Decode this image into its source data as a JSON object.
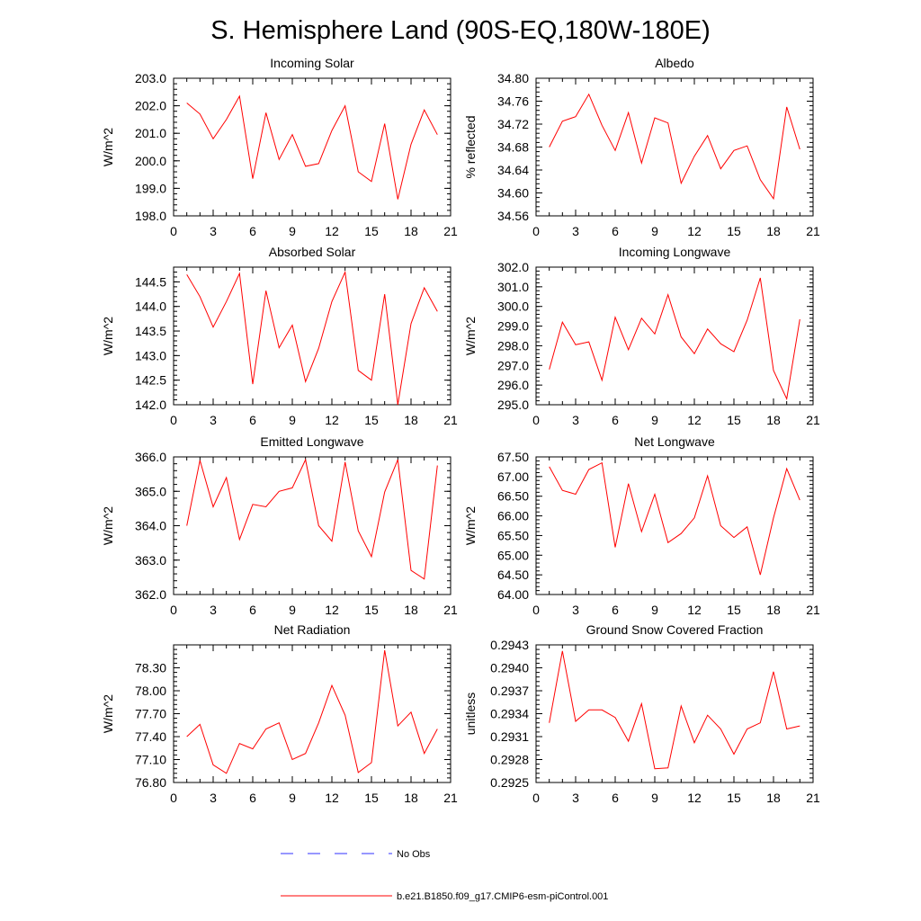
{
  "title": "S. Hemisphere Land (90S-EQ,180W-180E)",
  "colors": {
    "model": "#ff0000",
    "obs": "#3030ff",
    "frame": "#000000"
  },
  "legend": [
    {
      "label": "No Obs",
      "style": "dashed",
      "color": "#3030ff"
    },
    {
      "label": "b.e21.B1850.f09_g17.CMIP6-esm-piControl.001",
      "style": "solid",
      "color": "#ff0000"
    }
  ],
  "chart_data": [
    {
      "type": "line",
      "title": "Incoming Solar",
      "ylabel": "W/m^2",
      "xlim": [
        0,
        21
      ],
      "xticks": [
        "0",
        "3",
        "6",
        "9",
        "12",
        "15",
        "18",
        "21"
      ],
      "ylim": [
        198.0,
        203.0
      ],
      "yticks": [
        "198.0",
        "199.0",
        "200.0",
        "201.0",
        "202.0",
        "203.0"
      ],
      "series": [
        {
          "name": "b.e21.B1850.f09_g17.CMIP6-esm-piControl.001",
          "x": [
            1,
            2,
            3,
            4,
            5,
            6,
            7,
            8,
            9,
            10,
            11,
            12,
            13,
            14,
            15,
            16,
            17,
            18,
            19,
            20
          ],
          "values": [
            202.1,
            201.7,
            200.8,
            201.5,
            202.35,
            199.35,
            201.75,
            200.05,
            200.95,
            199.8,
            199.9,
            201.1,
            202.0,
            199.6,
            199.25,
            201.35,
            198.6,
            200.6,
            201.85,
            200.95
          ]
        }
      ]
    },
    {
      "type": "line",
      "title": "Albedo",
      "ylabel": "% reflected",
      "xlim": [
        0,
        21
      ],
      "xticks": [
        "0",
        "3",
        "6",
        "9",
        "12",
        "15",
        "18",
        "21"
      ],
      "ylim": [
        34.56,
        34.8
      ],
      "yticks": [
        "34.56",
        "34.60",
        "34.64",
        "34.68",
        "34.72",
        "34.76",
        "34.80"
      ],
      "series": [
        {
          "name": "b.e21.B1850.f09_g17.CMIP6-esm-piControl.001",
          "x": [
            1,
            2,
            3,
            4,
            5,
            6,
            7,
            8,
            9,
            10,
            11,
            12,
            13,
            14,
            15,
            16,
            17,
            18,
            19,
            20
          ],
          "values": [
            34.68,
            34.725,
            34.733,
            34.772,
            34.718,
            34.674,
            34.74,
            34.652,
            34.731,
            34.722,
            34.617,
            34.664,
            34.7,
            34.642,
            34.674,
            34.682,
            34.623,
            34.59,
            34.75,
            34.676
          ]
        }
      ]
    },
    {
      "type": "line",
      "title": "Absorbed Solar",
      "ylabel": "W/m^2",
      "xlim": [
        0,
        21
      ],
      "xticks": [
        "0",
        "3",
        "6",
        "9",
        "12",
        "15",
        "18",
        "21"
      ],
      "ylim": [
        142.0,
        144.8
      ],
      "yticks": [
        "142.0",
        "142.5",
        "143.0",
        "143.5",
        "144.0",
        "144.5"
      ],
      "series": [
        {
          "name": "b.e21.B1850.f09_g17.CMIP6-esm-piControl.001",
          "x": [
            1,
            2,
            3,
            4,
            5,
            6,
            7,
            8,
            9,
            10,
            11,
            12,
            13,
            14,
            15,
            16,
            17,
            18,
            19,
            20
          ],
          "values": [
            144.65,
            144.2,
            143.58,
            144.1,
            144.67,
            142.42,
            144.32,
            143.16,
            143.62,
            142.47,
            143.15,
            144.1,
            144.7,
            142.7,
            142.5,
            144.25,
            142.0,
            143.65,
            144.38,
            143.9
          ]
        }
      ]
    },
    {
      "type": "line",
      "title": "Incoming Longwave",
      "ylabel": "W/m^2",
      "xlim": [
        0,
        21
      ],
      "xticks": [
        "0",
        "3",
        "6",
        "9",
        "12",
        "15",
        "18",
        "21"
      ],
      "ylim": [
        295.0,
        302.0
      ],
      "yticks": [
        "295.0",
        "296.0",
        "297.0",
        "298.0",
        "299.0",
        "300.0",
        "301.0",
        "302.0"
      ],
      "series": [
        {
          "name": "b.e21.B1850.f09_g17.CMIP6-esm-piControl.001",
          "x": [
            1,
            2,
            3,
            4,
            5,
            6,
            7,
            8,
            9,
            10,
            11,
            12,
            13,
            14,
            15,
            16,
            17,
            18,
            19,
            20
          ],
          "values": [
            296.8,
            299.2,
            298.05,
            298.2,
            296.25,
            299.45,
            297.8,
            299.4,
            298.6,
            300.6,
            298.45,
            297.6,
            298.85,
            298.1,
            297.7,
            299.3,
            301.45,
            296.75,
            295.3,
            299.35
          ]
        }
      ]
    },
    {
      "type": "line",
      "title": "Emitted Longwave",
      "ylabel": "W/m^2",
      "xlim": [
        0,
        21
      ],
      "xticks": [
        "0",
        "3",
        "6",
        "9",
        "12",
        "15",
        "18",
        "21"
      ],
      "ylim": [
        362.0,
        366.0
      ],
      "yticks": [
        "362.0",
        "363.0",
        "364.0",
        "365.0",
        "366.0"
      ],
      "series": [
        {
          "name": "b.e21.B1850.f09_g17.CMIP6-esm-piControl.001",
          "x": [
            1,
            2,
            3,
            4,
            5,
            6,
            7,
            8,
            9,
            10,
            11,
            12,
            13,
            14,
            15,
            16,
            17,
            18,
            19,
            20
          ],
          "values": [
            364.0,
            365.9,
            364.55,
            365.4,
            363.6,
            364.62,
            364.55,
            365.0,
            365.1,
            365.92,
            364.0,
            363.55,
            365.85,
            363.85,
            363.1,
            364.98,
            365.92,
            362.7,
            362.45,
            365.75
          ]
        }
      ]
    },
    {
      "type": "line",
      "title": "Net Longwave",
      "ylabel": "W/m^2",
      "xlim": [
        0,
        21
      ],
      "xticks": [
        "0",
        "3",
        "6",
        "9",
        "12",
        "15",
        "18",
        "21"
      ],
      "ylim": [
        64.0,
        67.5
      ],
      "yticks": [
        "64.00",
        "64.50",
        "65.00",
        "65.50",
        "66.00",
        "66.50",
        "67.00",
        "67.50"
      ],
      "series": [
        {
          "name": "b.e21.B1850.f09_g17.CMIP6-esm-piControl.001",
          "x": [
            1,
            2,
            3,
            4,
            5,
            6,
            7,
            8,
            9,
            10,
            11,
            12,
            13,
            14,
            15,
            16,
            17,
            18,
            19,
            20
          ],
          "values": [
            67.25,
            66.65,
            66.55,
            67.18,
            67.35,
            65.2,
            66.82,
            65.6,
            66.55,
            65.32,
            65.55,
            65.95,
            67.02,
            65.75,
            65.45,
            65.72,
            64.5,
            65.95,
            67.2,
            66.4
          ]
        }
      ]
    },
    {
      "type": "line",
      "title": "Net Radiation",
      "ylabel": "W/m^2",
      "xlim": [
        0,
        21
      ],
      "xticks": [
        "0",
        "3",
        "6",
        "9",
        "12",
        "15",
        "18",
        "21"
      ],
      "ylim": [
        76.8,
        78.6
      ],
      "yticks": [
        "76.80",
        "77.10",
        "77.40",
        "77.70",
        "78.00",
        "78.30"
      ],
      "series": [
        {
          "name": "b.e21.B1850.f09_g17.CMIP6-esm-piControl.001",
          "x": [
            1,
            2,
            3,
            4,
            5,
            6,
            7,
            8,
            9,
            10,
            11,
            12,
            13,
            14,
            15,
            16,
            17,
            18,
            19,
            20
          ],
          "values": [
            77.4,
            77.56,
            77.03,
            76.92,
            77.31,
            77.24,
            77.5,
            77.58,
            77.1,
            77.18,
            77.58,
            78.07,
            77.68,
            76.93,
            77.06,
            78.53,
            77.54,
            77.72,
            77.18,
            77.5
          ]
        }
      ]
    },
    {
      "type": "line",
      "title": "Ground Snow Covered Fraction",
      "ylabel": "unitless",
      "xlim": [
        0,
        21
      ],
      "xticks": [
        "0",
        "3",
        "6",
        "9",
        "12",
        "15",
        "18",
        "21"
      ],
      "ylim": [
        0.2925,
        0.2943
      ],
      "yticks": [
        "0.2925",
        "0.2928",
        "0.2931",
        "0.2934",
        "0.2937",
        "0.2940",
        "0.2943"
      ],
      "series": [
        {
          "name": "b.e21.B1850.f09_g17.CMIP6-esm-piControl.001",
          "x": [
            1,
            2,
            3,
            4,
            5,
            6,
            7,
            8,
            9,
            10,
            11,
            12,
            13,
            14,
            15,
            16,
            17,
            18,
            19,
            20
          ],
          "values": [
            0.29328,
            0.29422,
            0.2933,
            0.29345,
            0.29345,
            0.29335,
            0.29304,
            0.29353,
            0.29268,
            0.29269,
            0.2935,
            0.29302,
            0.29338,
            0.2932,
            0.29287,
            0.2932,
            0.29328,
            0.29395,
            0.2932,
            0.29324
          ]
        }
      ]
    }
  ]
}
